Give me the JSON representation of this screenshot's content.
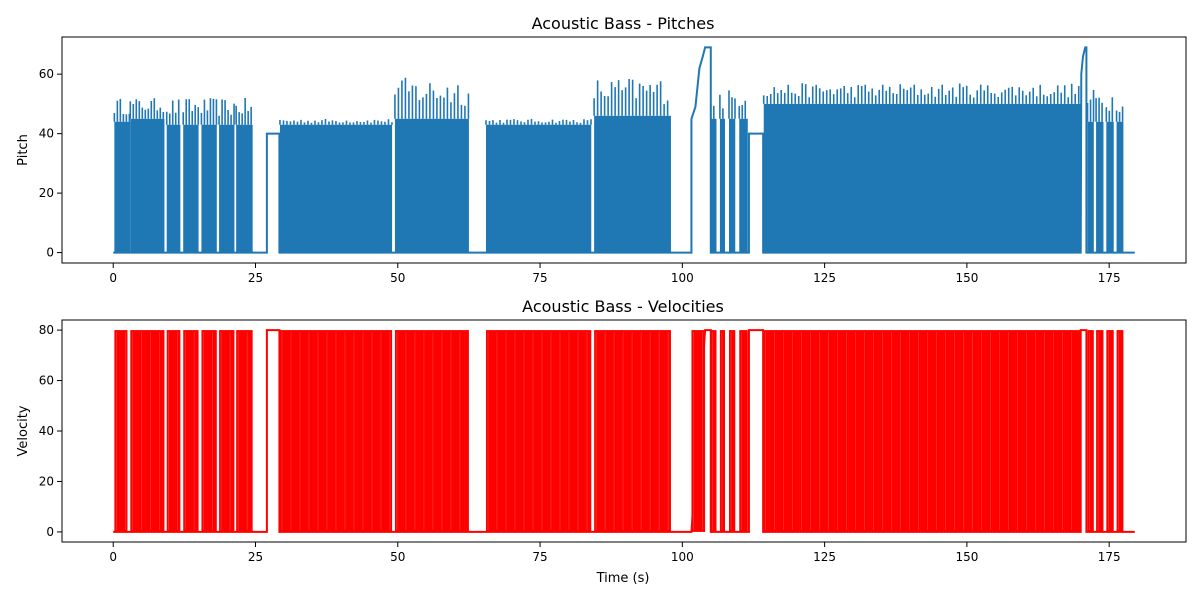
{
  "chart_data": [
    {
      "type": "line",
      "title": "Acoustic Bass - Pitches",
      "xlabel": "",
      "ylabel": "Pitch",
      "xlim": [
        -9,
        188.5
      ],
      "ylim": [
        -3.5,
        72.5
      ],
      "xticks": [
        0,
        25,
        50,
        75,
        100,
        125,
        150,
        175
      ],
      "yticks": [
        0,
        20,
        40,
        60
      ],
      "color": "#1f77b4",
      "series": [
        {
          "regions": [
            {
              "start": 0.2,
              "end": 3.0,
              "high": 52,
              "mid": 44,
              "density": 3
            },
            {
              "start": 3.0,
              "end": 9.0,
              "high": 52,
              "mid": 45,
              "density": 3
            },
            {
              "start": 9.4,
              "end": 11.8,
              "high": 52,
              "mid": 43,
              "density": 3
            },
            {
              "start": 12.3,
              "end": 15.0,
              "high": 52,
              "mid": 43,
              "density": 3
            },
            {
              "start": 15.5,
              "end": 18.2,
              "high": 52,
              "mid": 43,
              "density": 3
            },
            {
              "start": 18.6,
              "end": 21.3,
              "high": 52,
              "mid": 43,
              "density": 3
            },
            {
              "start": 21.6,
              "end": 24.5,
              "high": 52,
              "mid": 43,
              "density": 3
            },
            {
              "start": 29.3,
              "end": 49.0,
              "high": 45,
              "mid": 43,
              "density": 3.5
            },
            {
              "start": 49.5,
              "end": 62.5,
              "high": 59,
              "mid": 45,
              "density": 3.5
            },
            {
              "start": 65.5,
              "end": 84.0,
              "high": 45,
              "mid": 43,
              "density": 3.5
            },
            {
              "start": 84.5,
              "end": 98.0,
              "high": 59,
              "mid": 46,
              "density": 3.5
            },
            {
              "start": 105.0,
              "end": 106.0,
              "high": 54,
              "mid": 45,
              "density": 3
            },
            {
              "start": 106.6,
              "end": 107.5,
              "high": 55,
              "mid": 45,
              "density": 3
            },
            {
              "start": 108.2,
              "end": 109.3,
              "high": 55,
              "mid": 45,
              "density": 3
            },
            {
              "start": 110.0,
              "end": 111.5,
              "high": 57,
              "mid": 45,
              "density": 3
            },
            {
              "start": 114.3,
              "end": 170.0,
              "high": 57,
              "mid": 50,
              "density": 3.5
            },
            {
              "start": 171.2,
              "end": 172.3,
              "high": 55,
              "mid": 44,
              "density": 3
            },
            {
              "start": 172.7,
              "end": 174.0,
              "high": 55,
              "mid": 44,
              "density": 3
            },
            {
              "start": 174.5,
              "end": 175.8,
              "high": 55,
              "mid": 44,
              "density": 3
            },
            {
              "start": 176.3,
              "end": 177.5,
              "high": 55,
              "mid": 44,
              "density": 3
            }
          ],
          "steps": [
            [
              0,
              0
            ],
            [
              0.2,
              0
            ],
            [
              24.8,
              0
            ],
            [
              27.0,
              0
            ],
            [
              27.0,
              40
            ],
            [
              29.2,
              40
            ],
            [
              29.2,
              0
            ],
            [
              62.8,
              0
            ],
            [
              65.4,
              0
            ],
            [
              98.2,
              0
            ],
            [
              101.6,
              0
            ],
            [
              101.6,
              45
            ],
            [
              102.3,
              49
            ],
            [
              103.0,
              62
            ],
            [
              103.6,
              66
            ],
            [
              104.0,
              69
            ],
            [
              105.0,
              69
            ],
            [
              105.0,
              0
            ],
            [
              111.7,
              0
            ],
            [
              111.7,
              40
            ],
            [
              114.2,
              40
            ],
            [
              114.2,
              0
            ],
            [
              170.0,
              0
            ],
            [
              170.1,
              60
            ],
            [
              170.4,
              66
            ],
            [
              170.8,
              69
            ],
            [
              171.0,
              69
            ],
            [
              171.0,
              0
            ],
            [
              177.6,
              0
            ],
            [
              179.5,
              0
            ]
          ]
        }
      ]
    },
    {
      "type": "line",
      "title": "Acoustic Bass - Velocities",
      "xlabel": "Time (s)",
      "ylabel": "Velocity",
      "xlim": [
        -9,
        188.5
      ],
      "ylim": [
        -4,
        84
      ],
      "xticks": [
        0,
        25,
        50,
        75,
        100,
        125,
        150,
        175
      ],
      "yticks": [
        0,
        20,
        40,
        60,
        80
      ],
      "color": "#ff0000",
      "series": [
        {
          "regions": [
            {
              "start": 0.2,
              "end": 2.5,
              "high": 80,
              "mid": 80,
              "density": 6
            },
            {
              "start": 3.0,
              "end": 9.0,
              "high": 80,
              "mid": 80,
              "density": 6
            },
            {
              "start": 9.4,
              "end": 11.8,
              "high": 80,
              "mid": 80,
              "density": 6
            },
            {
              "start": 12.3,
              "end": 15.0,
              "high": 80,
              "mid": 80,
              "density": 6
            },
            {
              "start": 15.5,
              "end": 18.2,
              "high": 80,
              "mid": 80,
              "density": 6
            },
            {
              "start": 18.6,
              "end": 21.3,
              "high": 80,
              "mid": 80,
              "density": 6
            },
            {
              "start": 21.6,
              "end": 24.5,
              "high": 80,
              "mid": 80,
              "density": 6
            },
            {
              "start": 29.3,
              "end": 49.0,
              "high": 80,
              "mid": 80,
              "density": 6
            },
            {
              "start": 49.5,
              "end": 62.5,
              "high": 80,
              "mid": 80,
              "density": 6
            },
            {
              "start": 65.5,
              "end": 84.0,
              "high": 80,
              "mid": 80,
              "density": 6
            },
            {
              "start": 84.5,
              "end": 98.0,
              "high": 80,
              "mid": 80,
              "density": 6
            },
            {
              "start": 101.6,
              "end": 104.0,
              "high": 80,
              "mid": 80,
              "density": 6
            },
            {
              "start": 105.0,
              "end": 106.0,
              "high": 80,
              "mid": 80,
              "density": 6
            },
            {
              "start": 106.6,
              "end": 107.5,
              "high": 80,
              "mid": 80,
              "density": 6
            },
            {
              "start": 108.2,
              "end": 109.3,
              "high": 80,
              "mid": 80,
              "density": 6
            },
            {
              "start": 110.0,
              "end": 111.5,
              "high": 80,
              "mid": 80,
              "density": 6
            },
            {
              "start": 114.3,
              "end": 170.0,
              "high": 80,
              "mid": 80,
              "density": 6
            },
            {
              "start": 171.2,
              "end": 172.3,
              "high": 80,
              "mid": 80,
              "density": 6
            },
            {
              "start": 172.7,
              "end": 174.0,
              "high": 80,
              "mid": 80,
              "density": 6
            },
            {
              "start": 174.5,
              "end": 175.8,
              "high": 80,
              "mid": 80,
              "density": 6
            },
            {
              "start": 176.3,
              "end": 177.5,
              "high": 80,
              "mid": 80,
              "density": 6
            }
          ],
          "steps": [
            [
              0,
              0
            ],
            [
              0.2,
              0
            ],
            [
              24.8,
              0
            ],
            [
              27.0,
              0
            ],
            [
              27.0,
              80
            ],
            [
              29.2,
              80
            ],
            [
              29.2,
              0
            ],
            [
              62.8,
              0
            ],
            [
              65.4,
              0
            ],
            [
              98.2,
              0
            ],
            [
              101.6,
              0
            ],
            [
              104.0,
              80
            ],
            [
              105.0,
              80
            ],
            [
              105.0,
              0
            ],
            [
              111.7,
              0
            ],
            [
              111.7,
              80
            ],
            [
              114.2,
              80
            ],
            [
              114.2,
              0
            ],
            [
              170.0,
              0
            ],
            [
              170.0,
              80
            ],
            [
              171.0,
              80
            ],
            [
              171.0,
              0
            ],
            [
              177.6,
              0
            ],
            [
              179.5,
              0
            ]
          ]
        }
      ]
    }
  ]
}
